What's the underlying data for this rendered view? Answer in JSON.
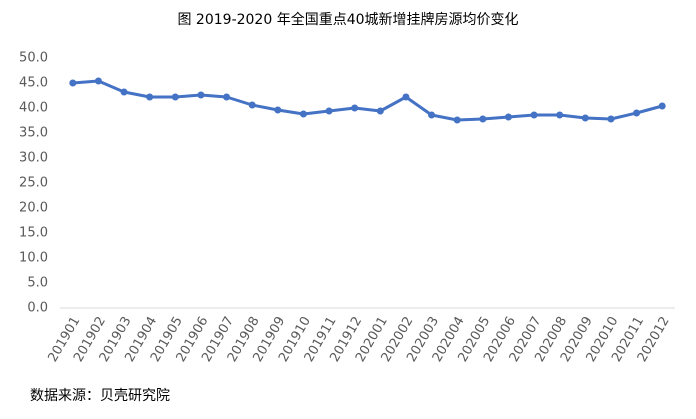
{
  "chart_data": {
    "type": "line",
    "title": "图 2019-2020 年全国重点40城新增挂牌房源均价变化",
    "source": "数据来源：贝壳研究院",
    "categories": [
      "201901",
      "201902",
      "201903",
      "201904",
      "201905",
      "201906",
      "201907",
      "201908",
      "201909",
      "201910",
      "201911",
      "201912",
      "202001",
      "202002",
      "202003",
      "202004",
      "202005",
      "202006",
      "202007",
      "202008",
      "202009",
      "202010",
      "202011",
      "202012"
    ],
    "series": [
      {
        "name": "均价",
        "color": "#4472c4",
        "values": [
          45.0,
          45.4,
          43.2,
          42.2,
          42.2,
          42.6,
          42.2,
          40.6,
          39.6,
          38.8,
          39.4,
          40.0,
          39.4,
          42.2,
          38.6,
          37.6,
          37.8,
          38.2,
          38.6,
          38.6,
          38.0,
          37.8,
          39.0,
          40.4
        ]
      }
    ],
    "ylim": [
      0,
      50
    ],
    "yticks": [
      {
        "value": 0,
        "label": "0.0"
      },
      {
        "value": 5,
        "label": "5.0"
      },
      {
        "value": 10,
        "label": "10.0"
      },
      {
        "value": 15,
        "label": "15.0"
      },
      {
        "value": 20,
        "label": "20.0"
      },
      {
        "value": 25,
        "label": "25.0"
      },
      {
        "value": 30,
        "label": "30.0"
      },
      {
        "value": 35,
        "label": "35.0"
      },
      {
        "value": 40,
        "label": "40.0"
      },
      {
        "value": 45,
        "label": "45.0"
      },
      {
        "value": 50,
        "label": "50.0"
      }
    ],
    "grid": false
  }
}
